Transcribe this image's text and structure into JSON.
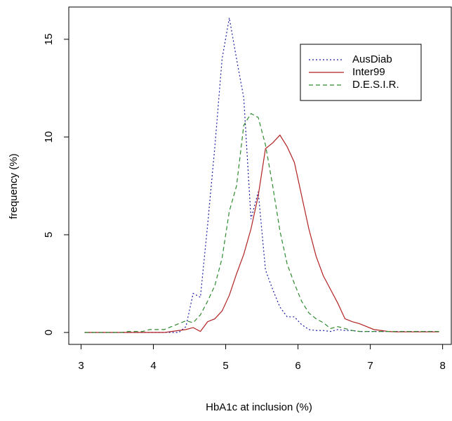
{
  "chart_data": {
    "type": "line",
    "x_label": "HbA1c at inclusion (%)",
    "y_label": "frequency (%)",
    "x": [
      3.05,
      3.15,
      3.25,
      3.35,
      3.45,
      3.55,
      3.65,
      3.75,
      3.85,
      3.95,
      4.05,
      4.15,
      4.25,
      4.35,
      4.45,
      4.55,
      4.65,
      4.75,
      4.85,
      4.95,
      5.05,
      5.15,
      5.25,
      5.35,
      5.45,
      5.55,
      5.65,
      5.75,
      5.85,
      5.95,
      6.05,
      6.15,
      6.25,
      6.35,
      6.45,
      6.55,
      6.65,
      6.75,
      6.85,
      6.95,
      7.05,
      7.15,
      7.25,
      7.35,
      7.45,
      7.55,
      7.65,
      7.75,
      7.85,
      7.95
    ],
    "series": [
      {
        "name": "AusDiab",
        "color": "#1a1aa6",
        "line_style": "dotted",
        "values": [
          0,
          0,
          0,
          0,
          0,
          0,
          0,
          0,
          0,
          0,
          0,
          0,
          0,
          0,
          0.3,
          2.0,
          1.8,
          5.5,
          9.5,
          14.0,
          16.1,
          14.0,
          12.0,
          5.8,
          7.2,
          3.2,
          2.2,
          1.3,
          0.8,
          0.8,
          0.4,
          0.15,
          0.1,
          0.1,
          0.05,
          0.15,
          0.1,
          0.1,
          0.05,
          0.05,
          0.05,
          0.05,
          0.05,
          0.05,
          0.05,
          0.05,
          0.05,
          0.05,
          0.05,
          0.05
        ]
      },
      {
        "name": "Inter99",
        "color": "#b22222",
        "line_style": "solid",
        "values": [
          0,
          0,
          0,
          0,
          0,
          0,
          0,
          0,
          0,
          0,
          0,
          0,
          0.05,
          0.1,
          0.15,
          0.25,
          0.05,
          0.55,
          0.7,
          1.1,
          1.9,
          3.0,
          4.0,
          5.3,
          7.0,
          9.4,
          9.7,
          10.1,
          9.5,
          8.7,
          7.0,
          5.3,
          3.9,
          2.9,
          2.2,
          1.5,
          0.7,
          0.55,
          0.45,
          0.3,
          0.15,
          0.1,
          0.05,
          0.03,
          0.03,
          0.03,
          0.03,
          0.03,
          0.03,
          0.03
        ]
      },
      {
        "name": "D.E.S.I.R.",
        "color": "#2e8b2e",
        "line_style": "dashed",
        "values": [
          0,
          0,
          0,
          0,
          0,
          0,
          0.05,
          0.05,
          0.05,
          0.15,
          0.15,
          0.15,
          0.3,
          0.45,
          0.6,
          0.5,
          0.9,
          1.6,
          2.4,
          3.8,
          6.2,
          7.5,
          10.6,
          11.2,
          11.0,
          9.6,
          7.5,
          5.2,
          3.5,
          2.5,
          1.6,
          1.0,
          0.7,
          0.5,
          0.2,
          0.3,
          0.2,
          0.1,
          0.05,
          0.05,
          0.05,
          0.05,
          0.05,
          0.05,
          0.05,
          0.05,
          0.05,
          0.05,
          0.05,
          0.05
        ]
      }
    ],
    "xlim": [
      2.83,
      8.12
    ],
    "xticks": [
      3,
      4,
      5,
      6,
      7,
      8
    ],
    "ylim": [
      -0.61,
      16.65
    ],
    "yticks": [
      0,
      5,
      10,
      15
    ],
    "legend": "topright"
  }
}
